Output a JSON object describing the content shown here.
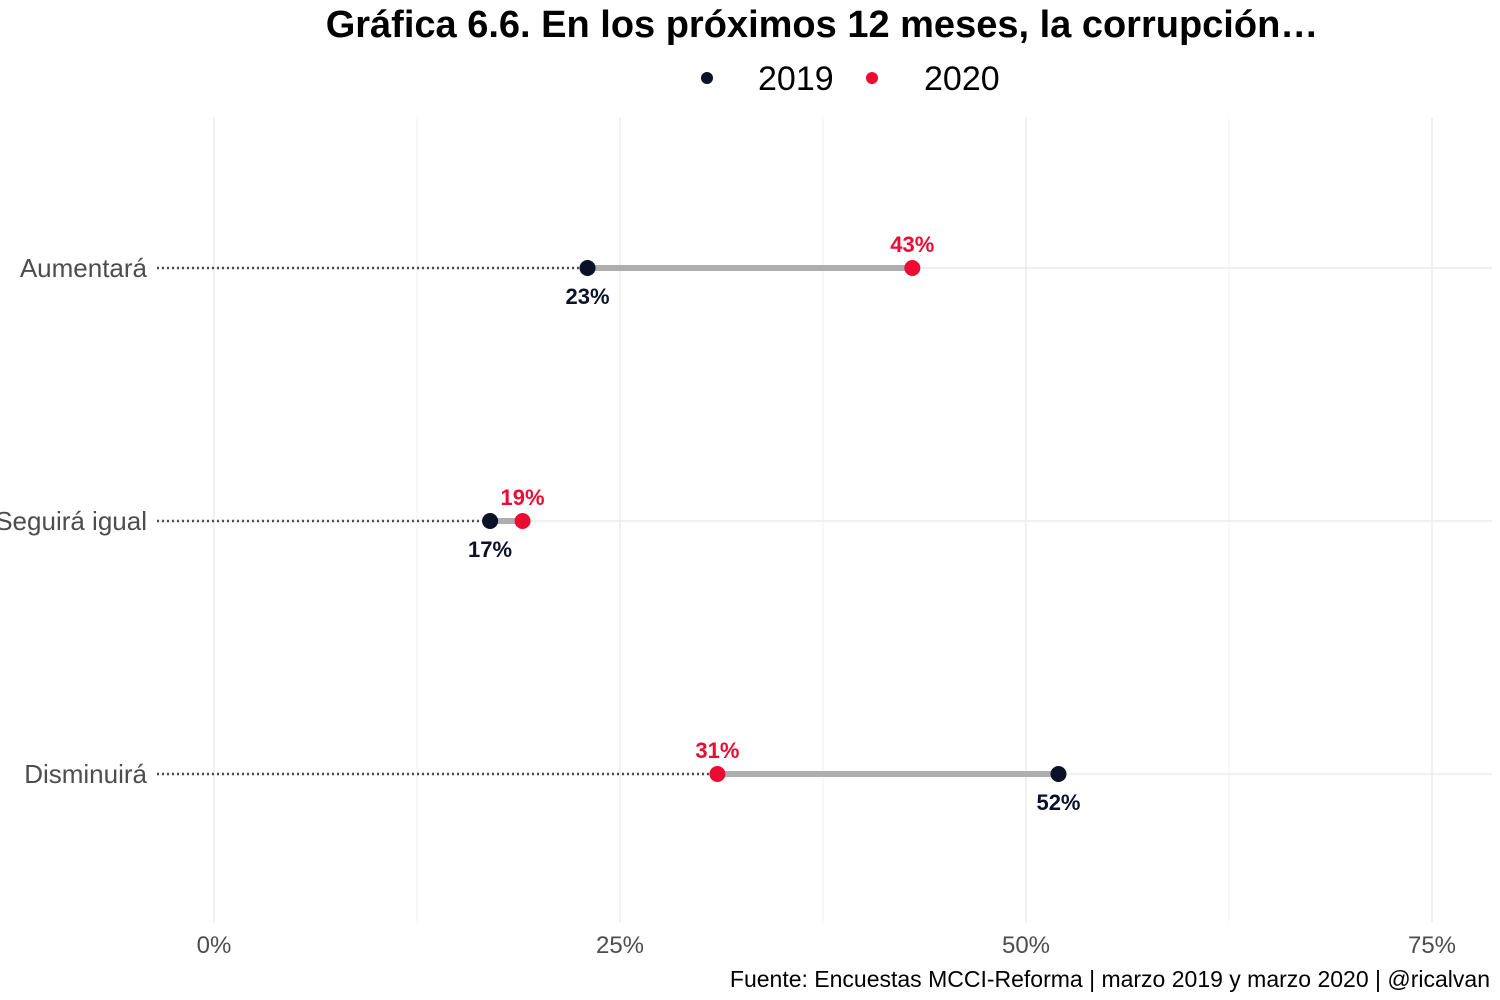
{
  "chart_data": {
    "type": "dumbbell",
    "title": "Gráfica 6.6. En los próximos 12 meses, la corrupción…",
    "caption": "Fuente: Encuestas MCCI-Reforma | marzo 2019 y marzo 2020 | @ricalvan",
    "categories": [
      "Aumentará",
      "Seguirá igual",
      "Disminuirá"
    ],
    "series": [
      {
        "name": "2019",
        "color": "#0b1128",
        "values": [
          23,
          17,
          52
        ],
        "labels": [
          "23%",
          "17%",
          "52%"
        ]
      },
      {
        "name": "2020",
        "color": "#ec0b31",
        "values": [
          43,
          19,
          31
        ],
        "labels": [
          "43%",
          "19%",
          "31%"
        ]
      }
    ],
    "x_ticks": [
      0,
      25,
      50,
      75
    ],
    "x_tick_labels": [
      "0%",
      "25%",
      "50%",
      "75%"
    ],
    "xlim": [
      0,
      78
    ],
    "xlabel": "",
    "ylabel": "",
    "grid": true,
    "legend_position": "top"
  }
}
